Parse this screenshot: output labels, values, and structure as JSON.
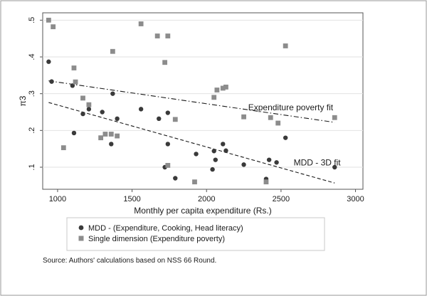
{
  "chart_data": {
    "type": "scatter",
    "xlabel": "Monthly per capita expenditure (Rs.)",
    "ylabel": "π3",
    "xlim": [
      900,
      3050
    ],
    "ylim": [
      0.04,
      0.52
    ],
    "x_ticks": [
      1000,
      1500,
      2000,
      2500,
      3000
    ],
    "x_tick_labels": [
      "1000",
      "1500",
      "2000",
      "2500",
      "3000"
    ],
    "y_ticks": [
      0.1,
      0.2,
      0.3,
      0.4,
      0.5
    ],
    "y_tick_labels": [
      ".1",
      ".2",
      ".3",
      ".4",
      ".5"
    ],
    "grid": true,
    "series": [
      {
        "name": "MDD - (Expenditure, Cooking, Head literacy)",
        "marker": "circle",
        "color": "#3a3a3a",
        "points": [
          [
            940,
            0.387
          ],
          [
            960,
            0.333
          ],
          [
            1100,
            0.322
          ],
          [
            1110,
            0.193
          ],
          [
            1170,
            0.245
          ],
          [
            1210,
            0.258
          ],
          [
            1300,
            0.25
          ],
          [
            1360,
            0.163
          ],
          [
            1370,
            0.3
          ],
          [
            1400,
            0.232
          ],
          [
            1560,
            0.258
          ],
          [
            1680,
            0.232
          ],
          [
            1720,
            0.1
          ],
          [
            1740,
            0.163
          ],
          [
            1740,
            0.248
          ],
          [
            1790,
            0.07
          ],
          [
            1930,
            0.136
          ],
          [
            2040,
            0.094
          ],
          [
            2050,
            0.144
          ],
          [
            2060,
            0.12
          ],
          [
            2110,
            0.163
          ],
          [
            2130,
            0.145
          ],
          [
            2250,
            0.107
          ],
          [
            2400,
            0.068
          ],
          [
            2420,
            0.12
          ],
          [
            2470,
            0.113
          ],
          [
            2530,
            0.18
          ],
          [
            2860,
            0.1
          ]
        ]
      },
      {
        "name": "Single dimension (Expenditure poverty)",
        "marker": "square",
        "color": "#8c8c8c",
        "points": [
          [
            940,
            0.5
          ],
          [
            970,
            0.482
          ],
          [
            1040,
            0.153
          ],
          [
            1110,
            0.37
          ],
          [
            1120,
            0.332
          ],
          [
            1170,
            0.288
          ],
          [
            1210,
            0.27
          ],
          [
            1290,
            0.18
          ],
          [
            1320,
            0.19
          ],
          [
            1360,
            0.19
          ],
          [
            1370,
            0.415
          ],
          [
            1400,
            0.185
          ],
          [
            1560,
            0.49
          ],
          [
            1670,
            0.457
          ],
          [
            1720,
            0.385
          ],
          [
            1740,
            0.457
          ],
          [
            1740,
            0.105
          ],
          [
            1790,
            0.23
          ],
          [
            1920,
            0.06
          ],
          [
            2050,
            0.29
          ],
          [
            2070,
            0.31
          ],
          [
            2110,
            0.315
          ],
          [
            2130,
            0.318
          ],
          [
            2250,
            0.237
          ],
          [
            2400,
            0.06
          ],
          [
            2430,
            0.235
          ],
          [
            2480,
            0.22
          ],
          [
            2530,
            0.43
          ],
          [
            2860,
            0.235
          ]
        ]
      }
    ],
    "fit_lines": [
      {
        "name": "Expenditure poverty fit",
        "label": "Expenditure poverty fit",
        "style": "dash-dot",
        "x": [
          940,
          2860
        ],
        "y": [
          0.335,
          0.222
        ]
      },
      {
        "name": "MDD - 3D fit",
        "label": "MDD - 3D fit",
        "style": "dashed",
        "x": [
          940,
          2860
        ],
        "y": [
          0.276,
          0.057
        ]
      }
    ],
    "legend": {
      "placement": "bottom",
      "entries": [
        "MDD - (Expenditure, Cooking, Head literacy)",
        "Single dimension (Expenditure poverty)"
      ]
    },
    "note": "Source: Authors' calculations based on NSS 66 Round."
  }
}
